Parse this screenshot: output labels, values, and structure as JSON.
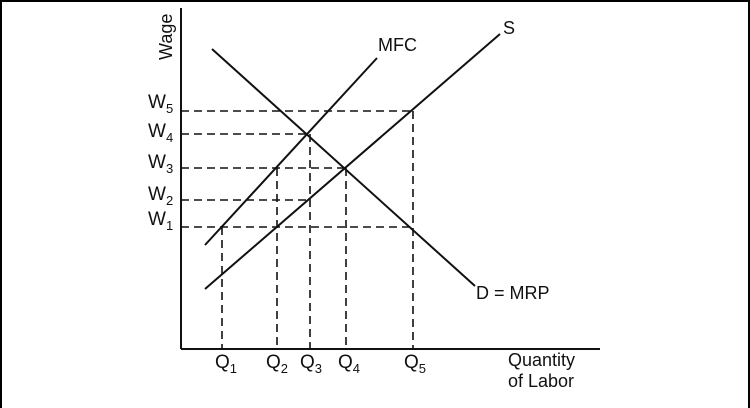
{
  "diagram": {
    "axes": {
      "y_title": "Wage",
      "x_title_line1": "Quantity",
      "x_title_line2": "of Labor"
    },
    "curves": {
      "mfc": "MFC",
      "supply": "S",
      "demand": "D = MRP"
    },
    "wage_levels": [
      {
        "main": "W",
        "sub": "5"
      },
      {
        "main": "W",
        "sub": "4"
      },
      {
        "main": "W",
        "sub": "3"
      },
      {
        "main": "W",
        "sub": "2"
      },
      {
        "main": "W",
        "sub": "1"
      }
    ],
    "quantity_levels": [
      {
        "main": "Q",
        "sub": "1"
      },
      {
        "main": "Q",
        "sub": "2"
      },
      {
        "main": "Q",
        "sub": "3"
      },
      {
        "main": "Q",
        "sub": "4"
      },
      {
        "main": "Q",
        "sub": "5"
      }
    ],
    "colors": {
      "line": "#111111",
      "background": "#ffffff"
    }
  }
}
